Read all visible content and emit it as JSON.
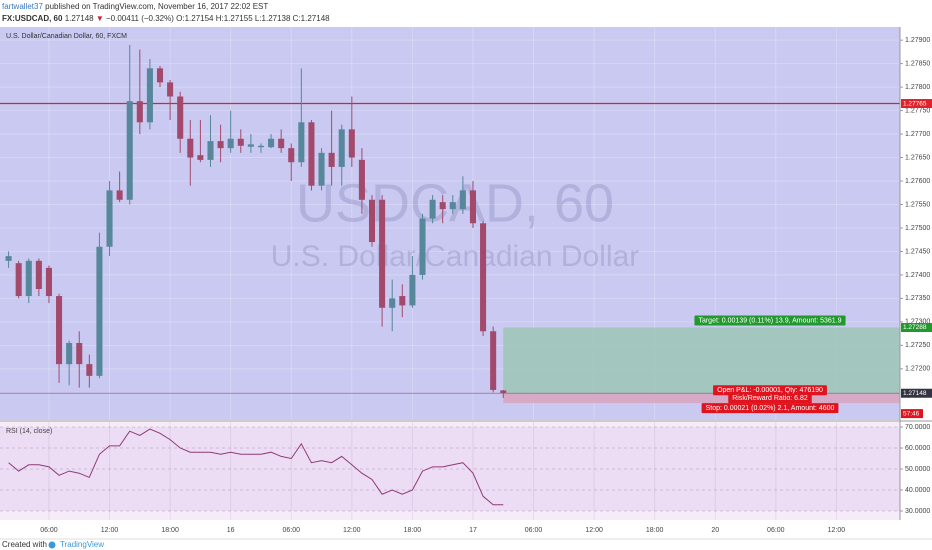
{
  "header": {
    "author": "fartwallet37",
    "published": "published on TradingView.com, November 16, 2017 22:02 EST",
    "symbol": "FX:USDCAD, 60",
    "last": "1.27148",
    "change_arrow": "▼",
    "change": "−0.00411 (−0.32%)",
    "ohlc": "O:1.27154 H:1.27155 L:1.27138 C:1.27148"
  },
  "footer": {
    "created": "Created with",
    "brand": "TradingView"
  },
  "chart_data": [
    {
      "type": "candlestick",
      "title": "U.S. Dollar/Canadian Dollar, 60, FXCM",
      "watermark": "USDCAD, 60",
      "watermark_subtitle": "U.S. Dollar/Canadian Dollar",
      "background": "#c9c9f1",
      "up_color": "#56879a",
      "down_color": "#a34a6c",
      "grid": true,
      "x": [
        0,
        1,
        2,
        3,
        4,
        5,
        6,
        7,
        8,
        9,
        10,
        11,
        12,
        13,
        14,
        15,
        16,
        17,
        18,
        19,
        20,
        21,
        22,
        23,
        24,
        25,
        26,
        27,
        28,
        29,
        30,
        31,
        32,
        33,
        34,
        35,
        36,
        37,
        38,
        39,
        40,
        41,
        42,
        43,
        44,
        45,
        46,
        47,
        48,
        49
      ],
      "open": [
        1.2743,
        1.27425,
        1.27355,
        1.2743,
        1.27415,
        1.27355,
        1.2721,
        1.27255,
        1.2721,
        1.27185,
        1.2746,
        1.2758,
        1.2756,
        1.2777,
        1.27725,
        1.2784,
        1.2781,
        1.2778,
        1.2769,
        1.27655,
        1.27645,
        1.27685,
        1.2767,
        1.2769,
        1.27673,
        1.27672,
        1.27672,
        1.2769,
        1.2767,
        1.2764,
        1.27725,
        1.2759,
        1.2766,
        1.2763,
        1.2771,
        1.27645,
        1.2756,
        1.2756,
        1.2733,
        1.27355,
        1.27335,
        1.274,
        1.2752,
        1.27555,
        1.2754,
        1.2754,
        1.2758,
        1.2751,
        1.2728,
        1.27154
      ],
      "high": [
        1.2745,
        1.2743,
        1.27435,
        1.27435,
        1.2742,
        1.2736,
        1.2726,
        1.2728,
        1.2723,
        1.2749,
        1.276,
        1.2762,
        1.2789,
        1.2788,
        1.2786,
        1.27845,
        1.27815,
        1.2779,
        1.2773,
        1.2773,
        1.2774,
        1.2772,
        1.2775,
        1.2771,
        1.277,
        1.2768,
        1.277,
        1.2771,
        1.2768,
        1.2784,
        1.2773,
        1.2767,
        1.2775,
        1.2772,
        1.2778,
        1.2767,
        1.2757,
        1.2757,
        1.2739,
        1.2738,
        1.2744,
        1.2753,
        1.2757,
        1.2757,
        1.2757,
        1.2761,
        1.276,
        1.27515,
        1.2729,
        1.27155
      ],
      "low": [
        1.27415,
        1.2735,
        1.2734,
        1.27355,
        1.2734,
        1.2717,
        1.27165,
        1.2716,
        1.2716,
        1.2718,
        1.2744,
        1.27555,
        1.2755,
        1.277,
        1.2771,
        1.278,
        1.2773,
        1.2766,
        1.2759,
        1.2764,
        1.2763,
        1.2764,
        1.2766,
        1.2766,
        1.2766,
        1.2766,
        1.2767,
        1.2766,
        1.276,
        1.2763,
        1.2758,
        1.2758,
        1.2759,
        1.2759,
        1.2763,
        1.2753,
        1.2746,
        1.2729,
        1.2728,
        1.2731,
        1.2733,
        1.2739,
        1.2751,
        1.2751,
        1.2753,
        1.2753,
        1.275,
        1.2727,
        1.2715,
        1.27138
      ],
      "close": [
        1.2744,
        1.27355,
        1.2743,
        1.2737,
        1.27355,
        1.2721,
        1.27255,
        1.2721,
        1.27185,
        1.2746,
        1.2758,
        1.2756,
        1.2777,
        1.27725,
        1.2784,
        1.2781,
        1.2778,
        1.2769,
        1.2765,
        1.27645,
        1.27685,
        1.2767,
        1.2769,
        1.27675,
        1.27678,
        1.27675,
        1.2769,
        1.2767,
        1.2764,
        1.27725,
        1.2759,
        1.2766,
        1.2763,
        1.2771,
        1.2765,
        1.2756,
        1.2747,
        1.2733,
        1.2735,
        1.27335,
        1.274,
        1.2752,
        1.2756,
        1.2754,
        1.27555,
        1.2758,
        1.2751,
        1.2728,
        1.27155,
        1.27148
      ],
      "xlim": [
        -0.85,
        88.3
      ],
      "xticks": [
        {
          "value": 4,
          "label": "06:00"
        },
        {
          "value": 10,
          "label": "12:00"
        },
        {
          "value": 16,
          "label": "18:00"
        },
        {
          "value": 22,
          "label": "16"
        },
        {
          "value": 28,
          "label": "06:00"
        },
        {
          "value": 34,
          "label": "12:00"
        },
        {
          "value": 40,
          "label": "18:00"
        },
        {
          "value": 46,
          "label": "17"
        },
        {
          "value": 52,
          "label": "06:00"
        },
        {
          "value": 58,
          "label": "12:00"
        },
        {
          "value": 64,
          "label": "18:00"
        },
        {
          "value": 70,
          "label": "20"
        },
        {
          "value": 76,
          "label": "06:00"
        },
        {
          "value": 82,
          "label": "12:00"
        }
      ],
      "ylim": [
        1.27091,
        1.27928
      ],
      "yticks": [
        {
          "value": 1.272,
          "label": "1.27200"
        },
        {
          "value": 1.2725,
          "label": "1.27250"
        },
        {
          "value": 1.273,
          "label": "1.27300"
        },
        {
          "value": 1.2735,
          "label": "1.27350"
        },
        {
          "value": 1.274,
          "label": "1.27400"
        },
        {
          "value": 1.2745,
          "label": "1.27450"
        },
        {
          "value": 1.275,
          "label": "1.27500"
        },
        {
          "value": 1.2755,
          "label": "1.27550"
        },
        {
          "value": 1.276,
          "label": "1.27600"
        },
        {
          "value": 1.2765,
          "label": "1.27650"
        },
        {
          "value": 1.277,
          "label": "1.27700"
        },
        {
          "value": 1.2775,
          "label": "1.27750"
        },
        {
          "value": 1.278,
          "label": "1.27800"
        },
        {
          "value": 1.2785,
          "label": "1.27850"
        },
        {
          "value": 1.279,
          "label": "1.27900"
        }
      ],
      "horizontal_line": {
        "value": 1.27765,
        "label": "1.27765",
        "color": "#e0202a"
      },
      "position": {
        "entry": {
          "value": 1.27148,
          "label": "1.27148"
        },
        "target": {
          "value": 1.27288,
          "label": "1.27288"
        },
        "stop": 1.27127,
        "target_color": "#9cc7b6",
        "stop_color": "#d7a6c2",
        "target_text": "Target: 0.00139 (0.11%) 13.9, Amount: 5361.9",
        "open_text": "Open P&L: -0.00001, Qty: 476190",
        "ratio_text": "Risk/Reward Ratio: 6.82",
        "stop_text": "Stop: 0.00021 (0.02%) 2.1, Amount: 4600",
        "countdown": "57:46"
      }
    },
    {
      "type": "line",
      "title": "RSI (14, close)",
      "background": "#f6ecf9",
      "band_color": "#ecdcf4",
      "color": "#8e3b78",
      "x": [
        0,
        1,
        2,
        3,
        4,
        5,
        6,
        7,
        8,
        9,
        10,
        11,
        12,
        13,
        14,
        15,
        16,
        17,
        18,
        19,
        20,
        21,
        22,
        23,
        24,
        25,
        26,
        27,
        28,
        29,
        30,
        31,
        32,
        33,
        34,
        35,
        36,
        37,
        38,
        39,
        40,
        41,
        42,
        43,
        44,
        45,
        46,
        47,
        48,
        49
      ],
      "values": [
        53,
        49,
        52,
        52,
        51,
        47,
        49,
        48,
        46,
        57,
        61,
        61,
        68,
        66,
        69,
        67,
        64,
        60,
        58,
        58,
        58,
        57,
        58,
        57,
        57,
        57,
        58,
        56,
        55,
        62,
        53,
        54,
        53,
        56,
        52,
        48,
        45,
        38,
        40,
        38,
        40,
        49,
        51,
        51,
        52,
        53,
        48,
        37,
        33,
        33
      ],
      "ylim": [
        25.7,
        72.4
      ],
      "yticks": [
        {
          "value": 30,
          "label": "30.0000"
        },
        {
          "value": 40,
          "label": "40.0000"
        },
        {
          "value": 50,
          "label": "50.0000"
        },
        {
          "value": 60,
          "label": "60.0000"
        },
        {
          "value": 70,
          "label": "70.0000"
        }
      ]
    }
  ]
}
